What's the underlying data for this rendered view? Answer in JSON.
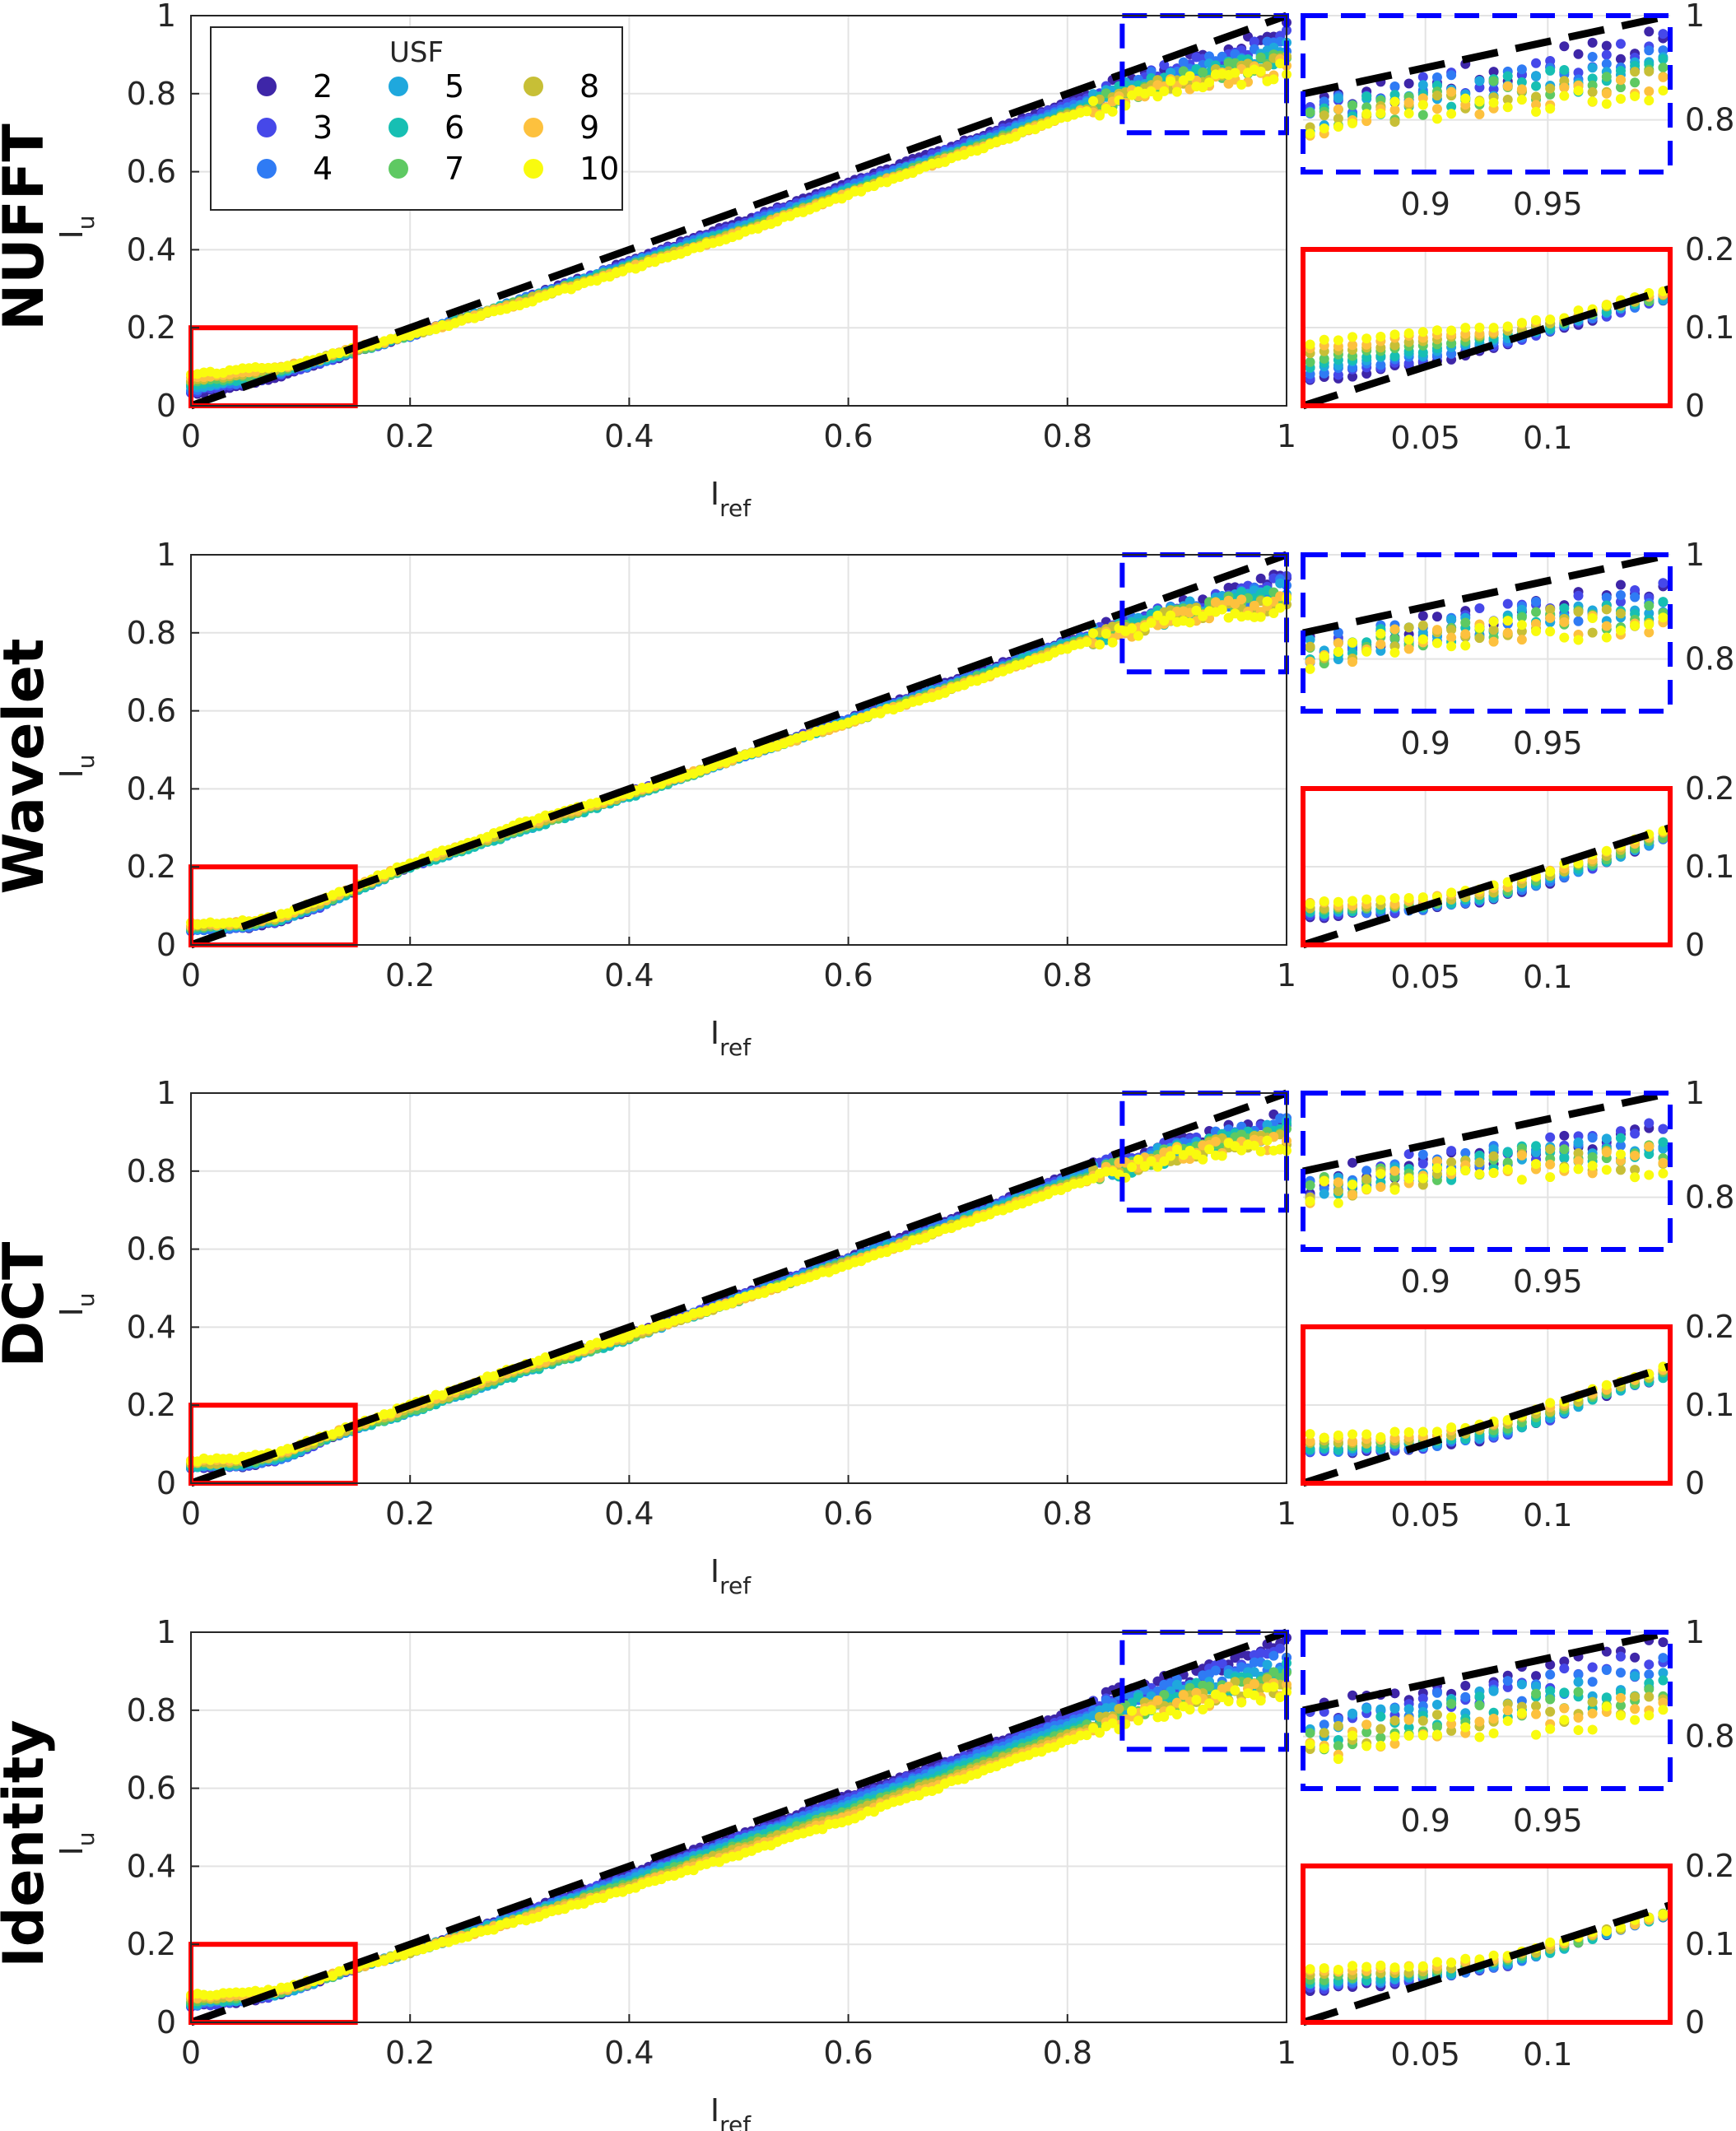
{
  "chart_data": {
    "type": "scatter",
    "x_label": "I",
    "x_label_sub": "ref",
    "y_label": "I",
    "y_label_sub": "u",
    "xlim": [
      0,
      1
    ],
    "ylim": [
      0,
      1
    ],
    "x_ticks": [
      "0",
      "0.2",
      "0.4",
      "0.6",
      "0.8",
      "1"
    ],
    "y_ticks": [
      "0",
      "0.2",
      "0.4",
      "0.6",
      "0.8",
      "1"
    ],
    "tick_values": [
      0,
      0.2,
      0.4,
      0.6,
      0.8,
      1
    ],
    "reference_line": {
      "style": "black dashed",
      "slope": 1,
      "intercept": 0
    },
    "highlight_boxes": [
      {
        "color": "#ff0000",
        "style": "solid",
        "xlim": [
          0,
          0.15
        ],
        "ylim": [
          0,
          0.2
        ]
      },
      {
        "color": "#0000ff",
        "style": "dashed",
        "xlim": [
          0.85,
          1
        ],
        "ylim": [
          0.7,
          1
        ]
      }
    ],
    "legend": {
      "title": "USF",
      "location": "top-left",
      "entries": [
        {
          "label": "2",
          "color": "#3e26a8"
        },
        {
          "label": "3",
          "color": "#4648e9"
        },
        {
          "label": "4",
          "color": "#2f7bf4"
        },
        {
          "label": "5",
          "color": "#1fa8dd"
        },
        {
          "label": "6",
          "color": "#17bfb3"
        },
        {
          "label": "7",
          "color": "#5ec962"
        },
        {
          "label": "8",
          "color": "#c7bf36"
        },
        {
          "label": "9",
          "color": "#fdc13e"
        },
        {
          "label": "10",
          "color": "#f9fb0e"
        }
      ]
    },
    "usf_values": [
      2,
      3,
      4,
      5,
      6,
      7,
      8,
      9,
      10
    ],
    "insets": {
      "high": {
        "xlim": [
          0.85,
          1
        ],
        "ylim": [
          0.7,
          1
        ],
        "x_ticks": [
          "0.9",
          "0.95"
        ],
        "x_tick_values": [
          0.9,
          0.95
        ],
        "y_ticks": [
          "0.8",
          "1"
        ],
        "y_tick_values": [
          0.8,
          1
        ]
      },
      "low": {
        "xlim": [
          0,
          0.15
        ],
        "ylim": [
          0,
          0.2
        ],
        "x_ticks": [
          "0.05",
          "0.1"
        ],
        "x_tick_values": [
          0.05,
          0.1
        ],
        "y_ticks": [
          "0",
          "0.1",
          "0.2"
        ],
        "y_tick_values": [
          0,
          0.1,
          0.2
        ]
      }
    },
    "panels": [
      {
        "title": "NUFFT",
        "x": [
          0,
          0.02,
          0.05,
          0.08,
          0.1,
          0.12,
          0.15,
          0.2,
          0.3,
          0.4,
          0.5,
          0.6,
          0.7,
          0.8,
          0.85,
          0.9,
          0.95,
          0.98,
          1
        ],
        "series": [
          {
            "usf": 2,
            "y": [
              0.03,
              0.04,
              0.055,
              0.075,
              0.095,
              0.11,
              0.14,
              0.18,
              0.27,
              0.37,
              0.47,
              0.57,
              0.67,
              0.78,
              0.82,
              0.87,
              0.91,
              0.94,
              0.96
            ]
          },
          {
            "usf": 6,
            "y": [
              0.05,
              0.06,
              0.07,
              0.09,
              0.1,
              0.12,
              0.14,
              0.18,
              0.27,
              0.36,
              0.45,
              0.55,
              0.65,
              0.75,
              0.8,
              0.84,
              0.87,
              0.88,
              0.9
            ]
          },
          {
            "usf": 10,
            "y": [
              0.08,
              0.085,
              0.095,
              0.1,
              0.11,
              0.125,
              0.15,
              0.18,
              0.26,
              0.35,
              0.44,
              0.54,
              0.64,
              0.74,
              0.78,
              0.82,
              0.84,
              0.85,
              0.86
            ]
          }
        ]
      },
      {
        "title": "Wavelet",
        "x": [
          0,
          0.02,
          0.05,
          0.08,
          0.1,
          0.12,
          0.15,
          0.2,
          0.3,
          0.4,
          0.5,
          0.6,
          0.7,
          0.8,
          0.85,
          0.9,
          0.95,
          0.98,
          1
        ],
        "series": [
          {
            "usf": 2,
            "y": [
              0.035,
              0.04,
              0.045,
              0.06,
              0.08,
              0.1,
              0.14,
              0.2,
              0.3,
              0.39,
              0.48,
              0.58,
              0.68,
              0.78,
              0.82,
              0.86,
              0.9,
              0.92,
              0.94
            ]
          },
          {
            "usf": 6,
            "y": [
              0.04,
              0.045,
              0.05,
              0.065,
              0.085,
              0.105,
              0.14,
              0.2,
              0.29,
              0.38,
              0.48,
              0.57,
              0.67,
              0.77,
              0.81,
              0.85,
              0.88,
              0.89,
              0.9
            ]
          },
          {
            "usf": 10,
            "y": [
              0.055,
              0.055,
              0.06,
              0.075,
              0.095,
              0.115,
              0.15,
              0.21,
              0.31,
              0.39,
              0.48,
              0.57,
              0.66,
              0.76,
              0.8,
              0.84,
              0.86,
              0.86,
              0.87
            ]
          }
        ]
      },
      {
        "title": "DCT",
        "x": [
          0,
          0.02,
          0.05,
          0.08,
          0.1,
          0.12,
          0.15,
          0.2,
          0.3,
          0.4,
          0.5,
          0.6,
          0.7,
          0.8,
          0.85,
          0.9,
          0.95,
          0.98,
          1
        ],
        "series": [
          {
            "usf": 2,
            "y": [
              0.04,
              0.04,
              0.045,
              0.06,
              0.08,
              0.11,
              0.14,
              0.19,
              0.29,
              0.38,
              0.48,
              0.58,
              0.68,
              0.79,
              0.83,
              0.87,
              0.9,
              0.92,
              0.94
            ]
          },
          {
            "usf": 6,
            "y": [
              0.045,
              0.045,
              0.05,
              0.065,
              0.085,
              0.11,
              0.14,
              0.18,
              0.28,
              0.37,
              0.47,
              0.57,
              0.67,
              0.77,
              0.81,
              0.85,
              0.88,
              0.89,
              0.9
            ]
          },
          {
            "usf": 10,
            "y": [
              0.06,
              0.06,
              0.065,
              0.08,
              0.1,
              0.12,
              0.15,
              0.2,
              0.3,
              0.38,
              0.47,
              0.56,
              0.66,
              0.76,
              0.8,
              0.84,
              0.86,
              0.86,
              0.87
            ]
          }
        ]
      },
      {
        "title": "Identity",
        "x": [
          0,
          0.02,
          0.05,
          0.08,
          0.1,
          0.12,
          0.15,
          0.2,
          0.3,
          0.4,
          0.5,
          0.6,
          0.7,
          0.8,
          0.85,
          0.9,
          0.95,
          0.98,
          1
        ],
        "series": [
          {
            "usf": 2,
            "y": [
              0.04,
              0.045,
              0.055,
              0.07,
              0.09,
              0.11,
              0.14,
              0.18,
              0.28,
              0.38,
              0.48,
              0.58,
              0.68,
              0.79,
              0.84,
              0.88,
              0.92,
              0.95,
              0.97
            ]
          },
          {
            "usf": 6,
            "y": [
              0.05,
              0.055,
              0.06,
              0.075,
              0.09,
              0.11,
              0.14,
              0.18,
              0.27,
              0.36,
              0.46,
              0.55,
              0.65,
              0.75,
              0.8,
              0.84,
              0.87,
              0.88,
              0.9
            ]
          },
          {
            "usf": 10,
            "y": [
              0.07,
              0.07,
              0.075,
              0.085,
              0.1,
              0.115,
              0.14,
              0.18,
              0.26,
              0.34,
              0.43,
              0.52,
              0.62,
              0.72,
              0.77,
              0.81,
              0.83,
              0.84,
              0.85
            ]
          }
        ]
      }
    ]
  }
}
